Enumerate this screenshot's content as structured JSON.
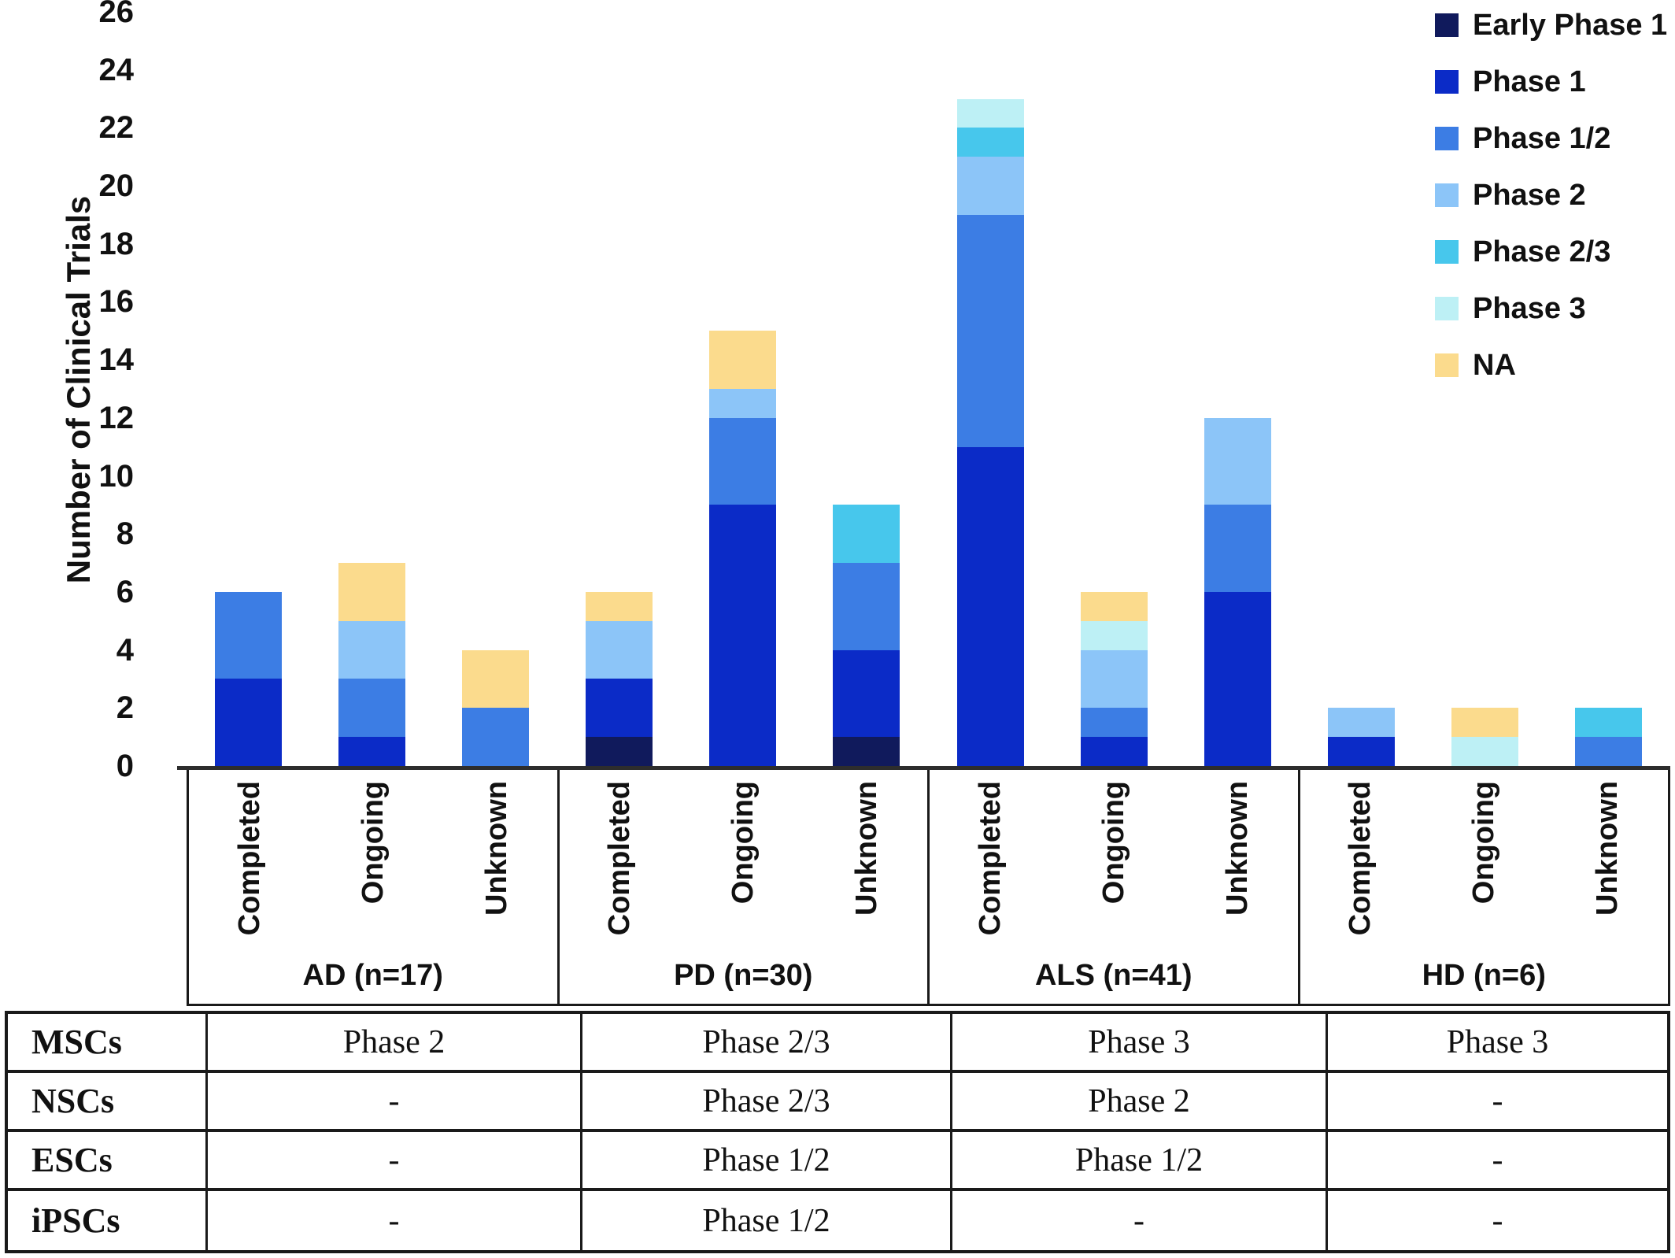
{
  "chart_data": {
    "type": "bar",
    "stacked": true,
    "title": "",
    "ylabel": "Number of Clinical Trials",
    "ylim": [
      0,
      26
    ],
    "yticks": [
      0,
      2,
      4,
      6,
      8,
      10,
      12,
      14,
      16,
      18,
      20,
      22,
      24,
      26
    ],
    "grid": false,
    "legend_position": "top-right",
    "phases": [
      {
        "name": "Early Phase 1",
        "color": "#101A5C"
      },
      {
        "name": "Phase 1",
        "color": "#0B2BC7"
      },
      {
        "name": "Phase 1/2",
        "color": "#3C7DE4"
      },
      {
        "name": "Phase 2",
        "color": "#8CC5F8"
      },
      {
        "name": "Phase 2/3",
        "color": "#47C7EC"
      },
      {
        "name": "Phase 3",
        "color": "#BDF0F5"
      },
      {
        "name": "NA",
        "color": "#FBDB8D"
      }
    ],
    "categories_per_group": [
      "Completed",
      "Ongoing",
      "Unknown"
    ],
    "groups": [
      {
        "label": "AD (n=17)",
        "bars": [
          {
            "label": "Completed",
            "total": 6,
            "segments": [
              [
                "Phase 1",
                3
              ],
              [
                "Phase 1/2",
                3
              ]
            ]
          },
          {
            "label": "Ongoing",
            "total": 7,
            "segments": [
              [
                "Phase 1",
                1
              ],
              [
                "Phase 1/2",
                2
              ],
              [
                "Phase 2",
                2
              ],
              [
                "NA",
                2
              ]
            ]
          },
          {
            "label": "Unknown",
            "total": 4,
            "segments": [
              [
                "Phase 1/2",
                2
              ],
              [
                "NA",
                2
              ]
            ]
          }
        ]
      },
      {
        "label": "PD (n=30)",
        "bars": [
          {
            "label": "Completed",
            "total": 6,
            "segments": [
              [
                "Early Phase 1",
                1
              ],
              [
                "Phase 1",
                2
              ],
              [
                "Phase 2",
                2
              ],
              [
                "NA",
                1
              ]
            ]
          },
          {
            "label": "Ongoing",
            "total": 15,
            "segments": [
              [
                "Phase 1",
                9
              ],
              [
                "Phase 1/2",
                3
              ],
              [
                "Phase 2",
                1
              ],
              [
                "NA",
                2
              ]
            ]
          },
          {
            "label": "Unknown",
            "total": 9,
            "segments": [
              [
                "Early Phase 1",
                1
              ],
              [
                "Phase 1",
                3
              ],
              [
                "Phase 1/2",
                3
              ],
              [
                "Phase 2/3",
                2
              ]
            ]
          }
        ]
      },
      {
        "label": "ALS (n=41)",
        "bars": [
          {
            "label": "Completed",
            "total": 23,
            "segments": [
              [
                "Phase 1",
                11
              ],
              [
                "Phase 1/2",
                8
              ],
              [
                "Phase 2",
                2
              ],
              [
                "Phase 2/3",
                1
              ],
              [
                "Phase 3",
                1
              ]
            ]
          },
          {
            "label": "Ongoing",
            "total": 6,
            "segments": [
              [
                "Phase 1",
                1
              ],
              [
                "Phase 1/2",
                1
              ],
              [
                "Phase 2",
                2
              ],
              [
                "Phase 3",
                1
              ],
              [
                "NA",
                1
              ]
            ]
          },
          {
            "label": "Unknown",
            "total": 12,
            "segments": [
              [
                "Phase 1",
                6
              ],
              [
                "Phase 1/2",
                3
              ],
              [
                "Phase 2",
                3
              ]
            ]
          }
        ]
      },
      {
        "label": "HD (n=6)",
        "bars": [
          {
            "label": "Completed",
            "total": 2,
            "segments": [
              [
                "Phase 1",
                1
              ],
              [
                "Phase 2",
                1
              ]
            ]
          },
          {
            "label": "Ongoing",
            "total": 2,
            "segments": [
              [
                "Phase 3",
                1
              ],
              [
                "NA",
                1
              ]
            ]
          },
          {
            "label": "Unknown",
            "total": 2,
            "segments": [
              [
                "Phase 1/2",
                1
              ],
              [
                "Phase 2/3",
                1
              ]
            ]
          }
        ]
      }
    ]
  },
  "table": {
    "rows": [
      {
        "label": "MSCs",
        "cells": [
          "Phase 2",
          "Phase 2/3",
          "Phase 3",
          "Phase 3"
        ]
      },
      {
        "label": "NSCs",
        "cells": [
          "-",
          "Phase 2/3",
          "Phase 2",
          "-"
        ]
      },
      {
        "label": "ESCs",
        "cells": [
          "-",
          "Phase 1/2",
          "Phase 1/2",
          "-"
        ]
      },
      {
        "label": "iPSCs",
        "cells": [
          "-",
          "Phase 1/2",
          "-",
          "-"
        ]
      }
    ]
  }
}
